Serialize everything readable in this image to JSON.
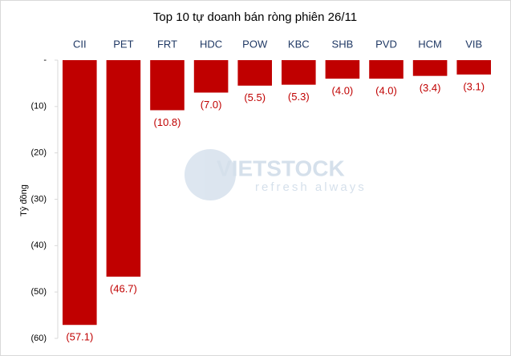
{
  "chart_data": {
    "type": "bar",
    "title": "Top 10 tự doanh bán ròng phiên 26/11",
    "y_label": "Tỷ đồng",
    "watermark": [
      "VIETSTOCK",
      "refresh always"
    ],
    "categories": [
      "CII",
      "PET",
      "FRT",
      "HDC",
      "POW",
      "KBC",
      "SHB",
      "PVD",
      "HCM",
      "VIB"
    ],
    "values": [
      -57.1,
      -46.7,
      -10.8,
      -7.0,
      -5.5,
      -5.3,
      -4.0,
      -4.0,
      -3.4,
      -3.1
    ],
    "value_labels": [
      "(57.1)",
      "(46.7)",
      "(10.8)",
      "(7.0)",
      "(5.5)",
      "(5.3)",
      "(4.0)",
      "(4.0)",
      "(3.4)",
      "(3.1)"
    ],
    "color": "#c00000",
    "ylim": [
      -60,
      0
    ],
    "yticks": [
      {
        "value": 0,
        "label": "-"
      },
      {
        "value": -10,
        "label": "(10)"
      },
      {
        "value": -20,
        "label": "(20)"
      },
      {
        "value": -30,
        "label": "(30)"
      },
      {
        "value": -40,
        "label": "(40)"
      },
      {
        "value": -50,
        "label": "(50)"
      },
      {
        "value": -60,
        "label": "(60)"
      }
    ],
    "grid": false
  }
}
